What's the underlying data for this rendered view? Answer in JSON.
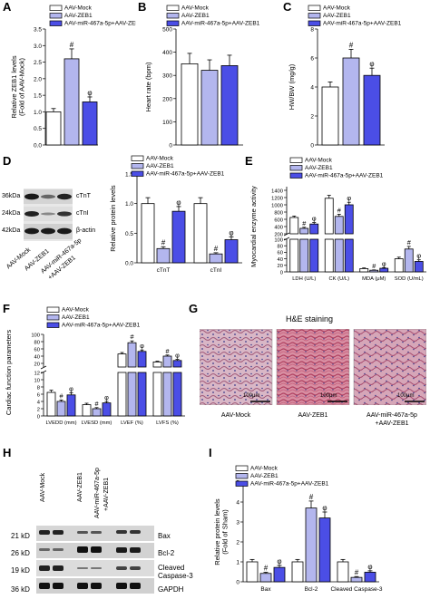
{
  "legend": {
    "mock": "AAV-Mock",
    "zeb1": "AAV-ZEB1",
    "combo": "AAV-miR-467a-5p+AAV-ZEB1"
  },
  "colors": {
    "mock": "#ffffff",
    "zeb1": "#b3b6ee",
    "combo": "#4b4ee6",
    "stroke": "#000000"
  },
  "marks": {
    "hash": "#",
    "phi": "φ"
  },
  "panels": {
    "A": {
      "label": "A",
      "ylabel": [
        "Relative ZEB1 levels",
        "(Fold of AAV-Mock)"
      ]
    },
    "B": {
      "label": "B",
      "ylabel": [
        "Heart rate (bpm)"
      ]
    },
    "C": {
      "label": "C",
      "ylabel": [
        "HW/BW (mg/g)"
      ]
    },
    "D": {
      "label": "D",
      "ylabel": [
        "Relative protein levels"
      ],
      "blot": {
        "kda": [
          "36kDa",
          "24kDa",
          "42kDa"
        ],
        "bands": [
          "cTnT",
          "cTnI",
          "β-actin"
        ],
        "lanes": [
          "AAV-Mock",
          "AAV-ZEB1",
          "AAV-miR-467a-5p",
          "+AAV-ZEB1"
        ]
      }
    },
    "E": {
      "label": "E",
      "ylabel": [
        "Myocardial enzyme activity"
      ]
    },
    "F": {
      "label": "F",
      "ylabel": [
        "Cardiac function parameters"
      ]
    },
    "G": {
      "label": "G",
      "title": "H&E staining",
      "scale": "100μm",
      "captions": [
        "AAV-Mock",
        "AAV-ZEB1",
        "AAV-miR-467a-5p",
        "+AAV-ZEB1"
      ]
    },
    "H": {
      "label": "H",
      "kda": [
        "21 kD",
        "26 kD",
        "19 kD",
        "36 kD"
      ],
      "bands": [
        "Bax",
        "Bcl-2",
        "Cleaved",
        "Caspase-3",
        "GAPDH"
      ],
      "lanes": [
        "AAV-Mock",
        "AAV-ZEB1",
        "AAV-miR-467a-5p",
        "+AAV-ZEB1"
      ]
    },
    "I": {
      "label": "I",
      "ylabel": [
        "Relative protein levels",
        "(Fold of Sham)"
      ]
    }
  },
  "chart_data": [
    {
      "panel": "A",
      "type": "bar",
      "categories": [
        ""
      ],
      "series": [
        {
          "name": "AAV-Mock",
          "values": [
            1.0
          ]
        },
        {
          "name": "AAV-ZEB1",
          "values": [
            2.6
          ]
        },
        {
          "name": "AAV-miR-467a-5p+AAV-ZEB1",
          "values": [
            1.3
          ]
        }
      ],
      "errors": [
        [
          0.1
        ],
        [
          0.3
        ],
        [
          0.15
        ]
      ],
      "marks": [
        [
          ""
        ],
        [
          "#"
        ],
        [
          "φ"
        ]
      ],
      "ylabel": "Relative ZEB1 levels (Fold of AAV-Mock)",
      "ylim": [
        0,
        3.5
      ],
      "yticks": [
        "0.0",
        "0.5",
        "1.0",
        "1.5",
        "2.0",
        "2.5",
        "3.0",
        "3.5"
      ]
    },
    {
      "panel": "B",
      "type": "bar",
      "categories": [
        ""
      ],
      "series": [
        {
          "name": "AAV-Mock",
          "values": [
            350
          ]
        },
        {
          "name": "AAV-ZEB1",
          "values": [
            322
          ]
        },
        {
          "name": "AAV-miR-467a-5p+AAV-ZEB1",
          "values": [
            342
          ]
        }
      ],
      "errors": [
        [
          45
        ],
        [
          45
        ],
        [
          45
        ]
      ],
      "marks": [
        [
          ""
        ],
        [
          ""
        ],
        [
          ""
        ]
      ],
      "ylabel": "Heart rate (bpm)",
      "ylim": [
        0,
        500
      ],
      "yticks": [
        "0",
        "100",
        "200",
        "300",
        "400",
        "500"
      ]
    },
    {
      "panel": "C",
      "type": "bar",
      "categories": [
        ""
      ],
      "series": [
        {
          "name": "AAV-Mock",
          "values": [
            4.0
          ]
        },
        {
          "name": "AAV-ZEB1",
          "values": [
            6.0
          ]
        },
        {
          "name": "AAV-miR-467a-5p+AAV-ZEB1",
          "values": [
            4.8
          ]
        }
      ],
      "errors": [
        [
          0.35
        ],
        [
          0.6
        ],
        [
          0.5
        ]
      ],
      "marks": [
        [
          ""
        ],
        [
          "#"
        ],
        [
          "φ"
        ]
      ],
      "ylabel": "HW/BW (mg/g)",
      "ylim": [
        0,
        8
      ],
      "yticks": [
        "0",
        "2",
        "4",
        "6",
        "8"
      ]
    },
    {
      "panel": "D",
      "type": "bar",
      "categories": [
        "cTnT",
        "cTnI"
      ],
      "series": [
        {
          "name": "AAV-Mock",
          "values": [
            1.0,
            1.0
          ]
        },
        {
          "name": "AAV-ZEB1",
          "values": [
            0.24,
            0.15
          ]
        },
        {
          "name": "AAV-miR-467a-5p+AAV-ZEB1",
          "values": [
            0.87,
            0.39
          ]
        }
      ],
      "errors": [
        [
          0.1,
          0.1
        ],
        [
          0.03,
          0.02
        ],
        [
          0.08,
          0.05
        ]
      ],
      "marks": [
        [
          "",
          ""
        ],
        [
          "#",
          "#"
        ],
        [
          "φ",
          "φ"
        ]
      ],
      "ylabel": "Relative protein levels",
      "ylim": [
        0,
        1.5
      ],
      "yticks": [
        "0.0",
        "0.5",
        "1.0",
        "1.5"
      ]
    },
    {
      "panel": "E",
      "type": "bar",
      "categories": [
        "LDH (U/L)",
        "CK (U/L)",
        "MDA (μM)",
        "SOD (U/mL)"
      ],
      "series": [
        {
          "name": "AAV-Mock",
          "values": [
            650,
            1180,
            10,
            40
          ]
        },
        {
          "name": "AAV-ZEB1",
          "values": [
            350,
            680,
            5,
            70
          ]
        },
        {
          "name": "AAV-miR-467a-5p+AAV-ZEB1",
          "values": [
            470,
            1000,
            11,
            32
          ]
        }
      ],
      "errors": [
        [
          40,
          80,
          2,
          5
        ],
        [
          30,
          60,
          1,
          8
        ],
        [
          40,
          70,
          2,
          5
        ]
      ],
      "marks": [
        [
          "",
          "",
          "",
          ""
        ],
        [
          "#",
          "#",
          "#",
          "#"
        ],
        [
          "φ",
          "φ",
          "φ",
          "φ"
        ]
      ],
      "ylabel": "Myocardial enzyme activity",
      "broken_axis": true,
      "lower_ylim": [
        0,
        100
      ],
      "upper_ylim": [
        200,
        1500
      ],
      "yticks_lower": [
        "0",
        "20",
        "40",
        "60",
        "80",
        "100"
      ],
      "yticks_upper": [
        "200",
        "400",
        "600",
        "800",
        "1000",
        "1200",
        "1400"
      ]
    },
    {
      "panel": "F",
      "type": "bar",
      "categories": [
        "LVEDD (mm)",
        "LVESD (mm)",
        "LVEF (%)",
        "LVFS (%)"
      ],
      "series": [
        {
          "name": "AAV-Mock",
          "values": [
            6.5,
            3.1,
            46,
            24
          ]
        },
        {
          "name": "AAV-ZEB1",
          "values": [
            4.0,
            2.0,
            77,
            40
          ]
        },
        {
          "name": "AAV-miR-467a-5p+AAV-ZEB1",
          "values": [
            5.8,
            3.6,
            53,
            28
          ]
        }
      ],
      "errors": [
        [
          0.6,
          0.4,
          4,
          2
        ],
        [
          0.4,
          0.3,
          5,
          3
        ],
        [
          0.6,
          0.4,
          4,
          3
        ]
      ],
      "marks": [
        [
          "",
          "",
          "",
          ""
        ],
        [
          "#",
          "#",
          "#",
          "#"
        ],
        [
          "φ",
          "φ",
          "φ",
          "φ"
        ]
      ],
      "ylabel": "Cardiac function parameters",
      "broken_axis": true,
      "lower_ylim": [
        0,
        12
      ],
      "upper_ylim": [
        10,
        100
      ],
      "yticks_lower": [
        "0",
        "2",
        "4",
        "6",
        "8",
        "10",
        "12"
      ],
      "yticks_upper": [
        "20",
        "40",
        "60",
        "80",
        "100"
      ]
    },
    {
      "panel": "I",
      "type": "bar",
      "categories": [
        "Bax",
        "Bcl-2",
        "Cleaved Caspase-3"
      ],
      "series": [
        {
          "name": "AAV-Mock",
          "values": [
            1.0,
            1.0,
            1.0
          ]
        },
        {
          "name": "AAV-ZEB1",
          "values": [
            0.42,
            3.7,
            0.22
          ]
        },
        {
          "name": "AAV-miR-467a-5p+AAV-ZEB1",
          "values": [
            0.72,
            3.2,
            0.48
          ]
        }
      ],
      "errors": [
        [
          0.12,
          0.12,
          0.12
        ],
        [
          0.06,
          0.35,
          0.04
        ],
        [
          0.1,
          0.3,
          0.07
        ]
      ],
      "marks": [
        [
          "",
          "",
          ""
        ],
        [
          "#",
          "#",
          "#"
        ],
        [
          "φ",
          "φ",
          "φ"
        ]
      ],
      "ylabel": "Relative protein levels (Fold of Sham)",
      "ylim": [
        0,
        5
      ],
      "yticks": [
        "0",
        "1",
        "2",
        "3",
        "4",
        "5"
      ]
    }
  ]
}
